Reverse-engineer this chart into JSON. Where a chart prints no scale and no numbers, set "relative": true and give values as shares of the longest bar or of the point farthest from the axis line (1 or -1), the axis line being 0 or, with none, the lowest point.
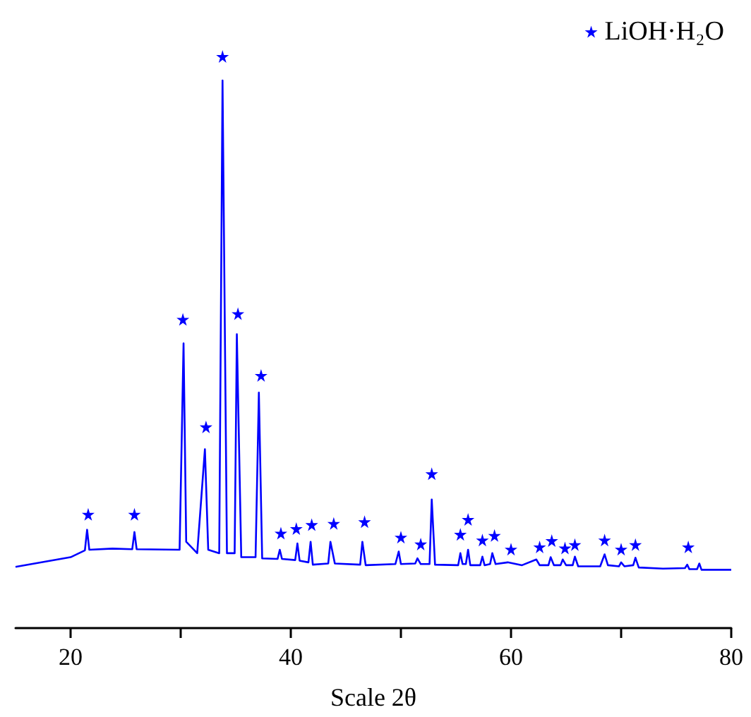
{
  "chart_data": {
    "type": "line",
    "xlabel": "Scale 2θ",
    "relative": true,
    "xlim": [
      15,
      80
    ],
    "xticks": [
      20,
      {
        "value": 30,
        "label": null
      },
      40,
      {
        "value": 50,
        "label": null
      },
      60,
      {
        "value": 70,
        "label": null
      },
      80
    ],
    "legend": "top right",
    "grid": false,
    "marker": "none",
    "series": [
      {
        "color": "#0000ff",
        "x": [
          15,
          20,
          21.3,
          21.5,
          21.7,
          23.8,
          25.6,
          25.8,
          26.0,
          29.9,
          30.26,
          30.5,
          31.5,
          32.2,
          32.5,
          33.5,
          33.8,
          34.2,
          34.9,
          35.1,
          35.5,
          36.8,
          37.1,
          37.4,
          38.8,
          39.0,
          39.2,
          40.4,
          40.6,
          40.8,
          41.6,
          41.8,
          42.0,
          43.4,
          43.6,
          44.0,
          46.3,
          46.5,
          46.8,
          49.5,
          49.8,
          50.0,
          51.3,
          51.5,
          51.8,
          52.6,
          52.8,
          53.1,
          55.2,
          55.4,
          55.6,
          55.9,
          56.1,
          56.3,
          57.2,
          57.4,
          57.6,
          58.1,
          58.3,
          58.6,
          59.7,
          61.0,
          62.3,
          62.6,
          63.4,
          63.6,
          63.9,
          64.5,
          64.7,
          65.0,
          65.6,
          65.8,
          66.1,
          68.1,
          68.5,
          68.8,
          69.8,
          70.0,
          70.3,
          71.1,
          71.3,
          71.6,
          73.8,
          75.8,
          76.0,
          76.2,
          76.9,
          77.1,
          77.3,
          80
        ],
        "values": [
          0.107,
          0.124,
          0.136,
          0.172,
          0.137,
          0.139,
          0.138,
          0.168,
          0.138,
          0.137,
          0.498,
          0.151,
          0.131,
          0.313,
          0.137,
          0.131,
          0.958,
          0.131,
          0.131,
          0.514,
          0.124,
          0.124,
          0.412,
          0.122,
          0.121,
          0.137,
          0.121,
          0.119,
          0.148,
          0.118,
          0.115,
          0.151,
          0.111,
          0.113,
          0.151,
          0.113,
          0.111,
          0.151,
          0.11,
          0.112,
          0.134,
          0.112,
          0.113,
          0.122,
          0.112,
          0.112,
          0.225,
          0.111,
          0.11,
          0.131,
          0.112,
          0.112,
          0.137,
          0.11,
          0.11,
          0.125,
          0.11,
          0.112,
          0.131,
          0.112,
          0.115,
          0.11,
          0.12,
          0.11,
          0.11,
          0.124,
          0.11,
          0.11,
          0.12,
          0.11,
          0.11,
          0.125,
          0.108,
          0.108,
          0.129,
          0.11,
          0.108,
          0.115,
          0.108,
          0.11,
          0.123,
          0.106,
          0.104,
          0.105,
          0.111,
          0.103,
          0.103,
          0.113,
          0.102,
          0.102
        ]
      },
      {
        "name": "LiOH·H₂O",
        "type": "scatter",
        "marker": "star",
        "color": "#0000ff",
        "x": [
          21.6,
          25.8,
          30.2,
          32.3,
          33.8,
          35.2,
          37.3,
          39.1,
          40.5,
          41.9,
          43.9,
          46.7,
          50.0,
          51.8,
          52.8,
          55.4,
          56.1,
          57.4,
          58.5,
          60.0,
          62.6,
          63.7,
          64.9,
          65.8,
          68.5,
          70.0,
          71.3,
          76.1
        ],
        "values": [
          0.199,
          0.199,
          0.54,
          0.352,
          1,
          0.55,
          0.442,
          0.166,
          0.174,
          0.181,
          0.183,
          0.186,
          0.159,
          0.147,
          0.27,
          0.164,
          0.19,
          0.154,
          0.162,
          0.138,
          0.142,
          0.153,
          0.14,
          0.146,
          0.154,
          0.138,
          0.146,
          0.142
        ]
      }
    ]
  }
}
